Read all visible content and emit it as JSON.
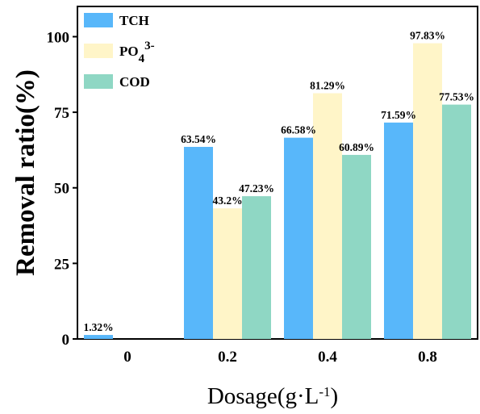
{
  "chart_data": {
    "type": "bar",
    "title": "",
    "xlabel": "Dosage(g·L",
    "xlabel_sup": "-1",
    "xlabel_close": ")",
    "ylabel": "Removal ratio(%)",
    "ylim": [
      0,
      110
    ],
    "yticks": [
      "0",
      "25",
      "50",
      "75",
      "100"
    ],
    "categories": [
      "0",
      "0.2",
      "0.4",
      "0.8"
    ],
    "grid": false,
    "legend_position": "top-left",
    "series": [
      {
        "name": "TCH",
        "color": "#58B7FA",
        "values": [
          1.32,
          63.54,
          66.58,
          71.59
        ],
        "labels": [
          "1.32%",
          "63.54%",
          "66.58%",
          "71.59%"
        ]
      },
      {
        "name": "PO4 3-",
        "name_base": "PO",
        "name_sub": "4",
        "name_sup": "3-",
        "color": "#FFF5C8",
        "values": [
          0,
          43.2,
          81.29,
          97.83
        ],
        "labels": [
          "",
          "43.2%",
          "81.29%",
          "97.83%"
        ]
      },
      {
        "name": "COD",
        "color": "#8FD7C4",
        "values": [
          0,
          47.23,
          60.89,
          77.53
        ],
        "labels": [
          "",
          "47.23%",
          "60.89%",
          "77.53%"
        ]
      }
    ]
  }
}
